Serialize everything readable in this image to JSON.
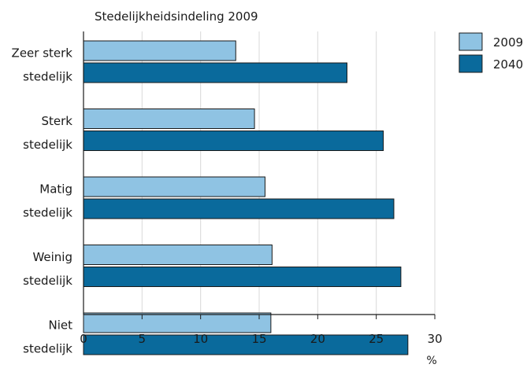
{
  "chart_data": {
    "type": "bar",
    "orientation": "horizontal",
    "title": "Stedelijkheidsindeling 2009",
    "xlabel": "%",
    "ylabel": "",
    "xlim": [
      0,
      30
    ],
    "x_ticks": [
      0,
      5,
      10,
      15,
      20,
      25,
      30
    ],
    "grid": true,
    "legend_position": "top-right",
    "categories": [
      [
        "Zeer sterk",
        "stedelijk"
      ],
      [
        "Sterk",
        "stedelijk"
      ],
      [
        "Matig",
        "stedelijk"
      ],
      [
        "Weinig",
        "stedelijk"
      ],
      [
        "Niet",
        "stedelijk"
      ]
    ],
    "series": [
      {
        "name": "2009",
        "color": "#8fc3e3",
        "values": [
          13.0,
          14.6,
          15.5,
          16.1,
          16.0
        ]
      },
      {
        "name": "2040",
        "color": "#0a6a9c",
        "values": [
          22.5,
          25.6,
          26.5,
          27.1,
          27.7
        ]
      }
    ]
  }
}
